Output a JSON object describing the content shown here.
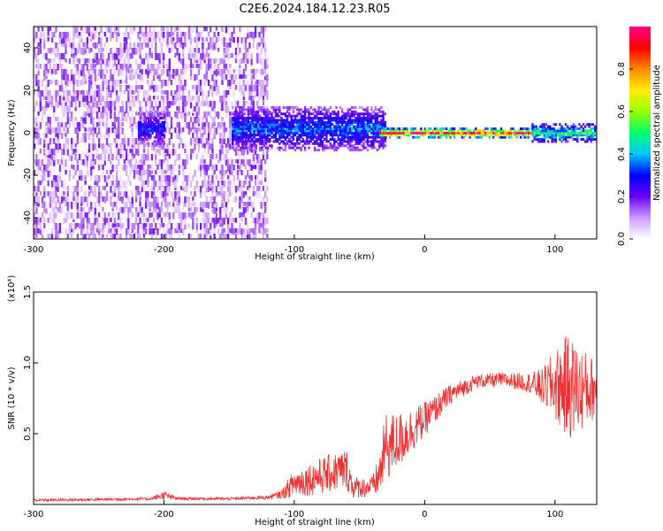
{
  "title": "C2E6.2024.184.12.23.R05",
  "colors": {
    "snr_line": "#f03030",
    "colorbar_stops": [
      "#ffffff",
      "#cc99ff",
      "#6a00ff",
      "#0000ff",
      "#00c8ff",
      "#00ff66",
      "#99ff00",
      "#ffee00",
      "#ff8800",
      "#ff0000",
      "#ff0088"
    ]
  },
  "chart_data": [
    {
      "type": "heatmap",
      "xlabel": "Height of straight line (km)",
      "ylabel": "Frequency (Hz)",
      "xlim": [
        -300,
        132
      ],
      "ylim": [
        -50,
        50
      ],
      "xticks": [
        -300,
        -200,
        -100,
        0,
        100
      ],
      "xtick_labels": [
        "-300",
        "-200",
        "-100",
        "0",
        "100"
      ],
      "yticks": [
        40,
        20,
        0,
        -20,
        -40
      ],
      "ytick_labels": [
        "40",
        "20",
        "0",
        "-20",
        "-40"
      ],
      "colorbar": {
        "label": "Normalized spectral amplitude",
        "range": [
          0,
          1
        ],
        "ticks": [
          0,
          0.2,
          0.4,
          0.6,
          0.8
        ],
        "tick_labels": [
          "0.0",
          "0.2",
          "0.4",
          "0.6",
          "0.8"
        ]
      },
      "regions": [
        {
          "x": [
            -300,
            -120
          ],
          "freq_range": [
            -50,
            50
          ],
          "amplitude": 0.1
        },
        {
          "x": [
            -220,
            -200
          ],
          "freq_center": 2,
          "freq_halfwidth": 8,
          "amplitude": 0.3
        },
        {
          "x": [
            -148,
            -30
          ],
          "freq_center": 2,
          "freq_halfwidth": 10,
          "amplitude": 0.35
        },
        {
          "x": [
            -35,
            82
          ],
          "freq_center": 0,
          "freq_halfwidth": 2,
          "amplitude": 0.9
        },
        {
          "x": [
            82,
            132
          ],
          "freq_center": 0,
          "freq_halfwidth": 4,
          "amplitude": 0.5
        }
      ]
    },
    {
      "type": "line",
      "xlabel": "Height of straight line (km)",
      "ylabel": "SNR (10 * v/v)",
      "y_multiplier": "(x10⁴)",
      "xlim": [
        -300,
        132
      ],
      "ylim": [
        0,
        15000
      ],
      "xticks": [
        -300,
        -200,
        -100,
        0,
        100
      ],
      "xtick_labels": [
        "-300",
        "-200",
        "-100",
        "0",
        "100"
      ],
      "yticks": [
        5000,
        10000,
        15000
      ],
      "ytick_labels": [
        "0.5",
        "1.0",
        "1.5"
      ],
      "series": [
        {
          "x": [
            -300,
            -250,
            -210,
            -200,
            -190,
            -150,
            -120,
            -110,
            -100,
            -80,
            -60,
            -55,
            -45,
            -40,
            -35,
            -30,
            -20,
            0,
            20,
            40,
            60,
            80,
            90,
            100,
            110,
            120,
            132
          ],
          "y": [
            300,
            350,
            400,
            650,
            420,
            400,
            500,
            700,
            1500,
            2000,
            2500,
            1200,
            1200,
            1300,
            2000,
            4000,
            4500,
            6000,
            7800,
            8700,
            8800,
            8600,
            8300,
            8400,
            8300,
            8100,
            8200
          ],
          "noise": [
            100,
            100,
            100,
            300,
            100,
            100,
            150,
            300,
            1000,
            1300,
            1500,
            800,
            700,
            700,
            1500,
            2500,
            2000,
            1200,
            700,
            500,
            500,
            700,
            1300,
            2500,
            3800,
            3000,
            2000
          ]
        }
      ]
    }
  ]
}
